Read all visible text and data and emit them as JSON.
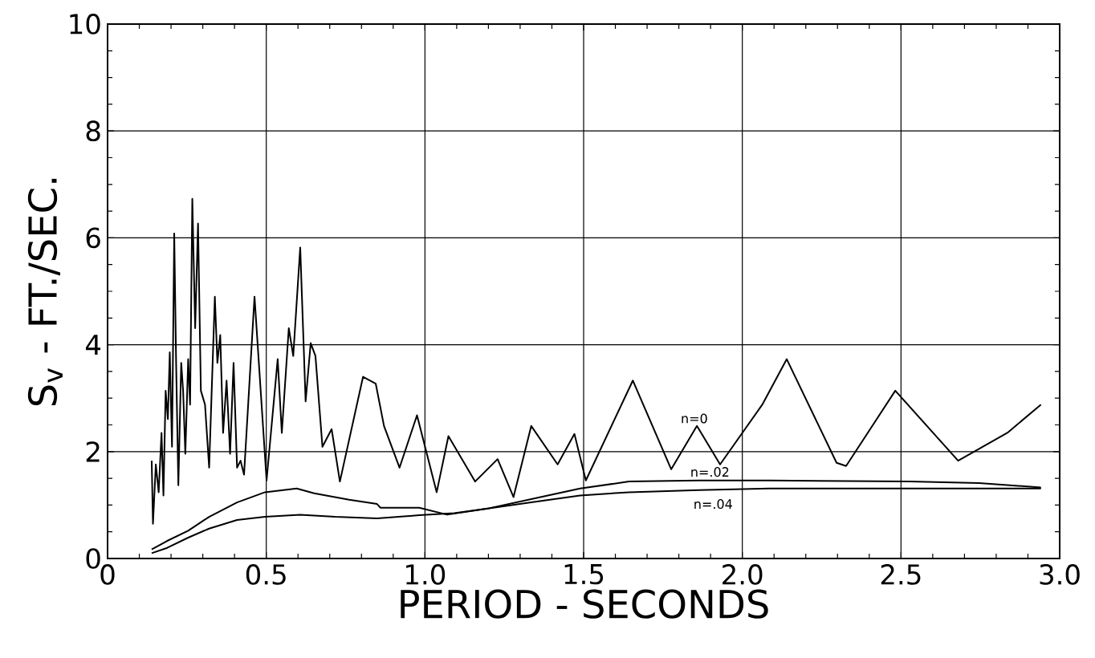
{
  "chart_data": {
    "type": "line",
    "xlabel": "PERIOD - SECONDS",
    "ylabel": "S$_{v}$ - FT./SEC.",
    "xlim": [
      0,
      3.0
    ],
    "ylim": [
      0,
      10
    ],
    "xticks": [
      {
        "value": 0,
        "label": "0"
      },
      {
        "value": 0.5,
        "label": "0.5"
      },
      {
        "value": 1.0,
        "label": "1.0"
      },
      {
        "value": 1.5,
        "label": "1.5"
      },
      {
        "value": 2.0,
        "label": "2.0"
      },
      {
        "value": 2.5,
        "label": "2.5"
      },
      {
        "value": 3.0,
        "label": "3.0"
      }
    ],
    "yticks": [
      0,
      2,
      4,
      6,
      8,
      10
    ],
    "grid": true,
    "legend": false,
    "marker": "none",
    "line_style": "solid",
    "series": [
      {
        "name": "n=0",
        "color": "#000000",
        "x": [
          0.139,
          0.143,
          0.152,
          0.161,
          0.17,
          0.176,
          0.183,
          0.19,
          0.196,
          0.203,
          0.21,
          0.216,
          0.223,
          0.232,
          0.238,
          0.245,
          0.254,
          0.26,
          0.267,
          0.276,
          0.285,
          0.294,
          0.307,
          0.32,
          0.338,
          0.346,
          0.355,
          0.364,
          0.375,
          0.386,
          0.397,
          0.408,
          0.419,
          0.43,
          0.463,
          0.501,
          0.536,
          0.549,
          0.571,
          0.585,
          0.607,
          0.624,
          0.64,
          0.655,
          0.677,
          0.706,
          0.732,
          0.805,
          0.845,
          0.871,
          0.92,
          0.975,
          1.037,
          1.074,
          1.158,
          1.229,
          1.279,
          1.335,
          1.418,
          1.471,
          1.507,
          1.655,
          1.776,
          1.857,
          1.93,
          2.063,
          2.14,
          2.297,
          2.327,
          2.482,
          2.68,
          2.835,
          2.941
        ],
        "values": [
          1.83,
          0.65,
          1.76,
          1.24,
          2.35,
          1.18,
          3.14,
          2.61,
          3.86,
          2.09,
          6.08,
          3.66,
          1.37,
          3.66,
          3.14,
          1.96,
          3.73,
          2.88,
          6.73,
          4.31,
          6.27,
          3.14,
          2.88,
          1.7,
          4.9,
          3.66,
          4.18,
          2.35,
          3.33,
          1.96,
          3.66,
          1.7,
          1.83,
          1.57,
          4.9,
          1.46,
          3.73,
          2.35,
          4.31,
          3.79,
          5.82,
          2.94,
          4.03,
          3.79,
          2.09,
          2.42,
          1.44,
          3.4,
          3.27,
          2.48,
          1.7,
          2.68,
          1.24,
          2.29,
          1.44,
          1.86,
          1.15,
          2.48,
          1.76,
          2.33,
          1.46,
          3.33,
          1.67,
          2.48,
          1.76,
          2.88,
          3.73,
          1.79,
          1.73,
          3.14,
          1.83,
          2.35,
          2.88
        ]
      },
      {
        "name": "n=.02",
        "color": "#000000",
        "x": [
          0.139,
          0.188,
          0.254,
          0.32,
          0.408,
          0.496,
          0.596,
          0.651,
          0.761,
          0.849,
          0.86,
          0.982,
          1.07,
          1.202,
          1.335,
          1.489,
          1.643,
          1.864,
          2.085,
          2.526,
          2.746,
          2.941
        ],
        "values": [
          0.17,
          0.33,
          0.52,
          0.78,
          1.05,
          1.24,
          1.31,
          1.22,
          1.1,
          1.02,
          0.95,
          0.95,
          0.82,
          0.94,
          1.11,
          1.31,
          1.44,
          1.46,
          1.46,
          1.44,
          1.41,
          1.33
        ]
      },
      {
        "name": "n=.04",
        "color": "#000000",
        "x": [
          0.139,
          0.188,
          0.254,
          0.32,
          0.408,
          0.496,
          0.607,
          0.717,
          0.849,
          0.982,
          1.092,
          1.202,
          1.335,
          1.489,
          1.643,
          1.864,
          2.085,
          2.526,
          2.941
        ],
        "values": [
          0.1,
          0.2,
          0.39,
          0.56,
          0.72,
          0.78,
          0.82,
          0.78,
          0.75,
          0.81,
          0.85,
          0.94,
          1.05,
          1.18,
          1.24,
          1.28,
          1.31,
          1.31,
          1.31
        ]
      }
    ]
  }
}
